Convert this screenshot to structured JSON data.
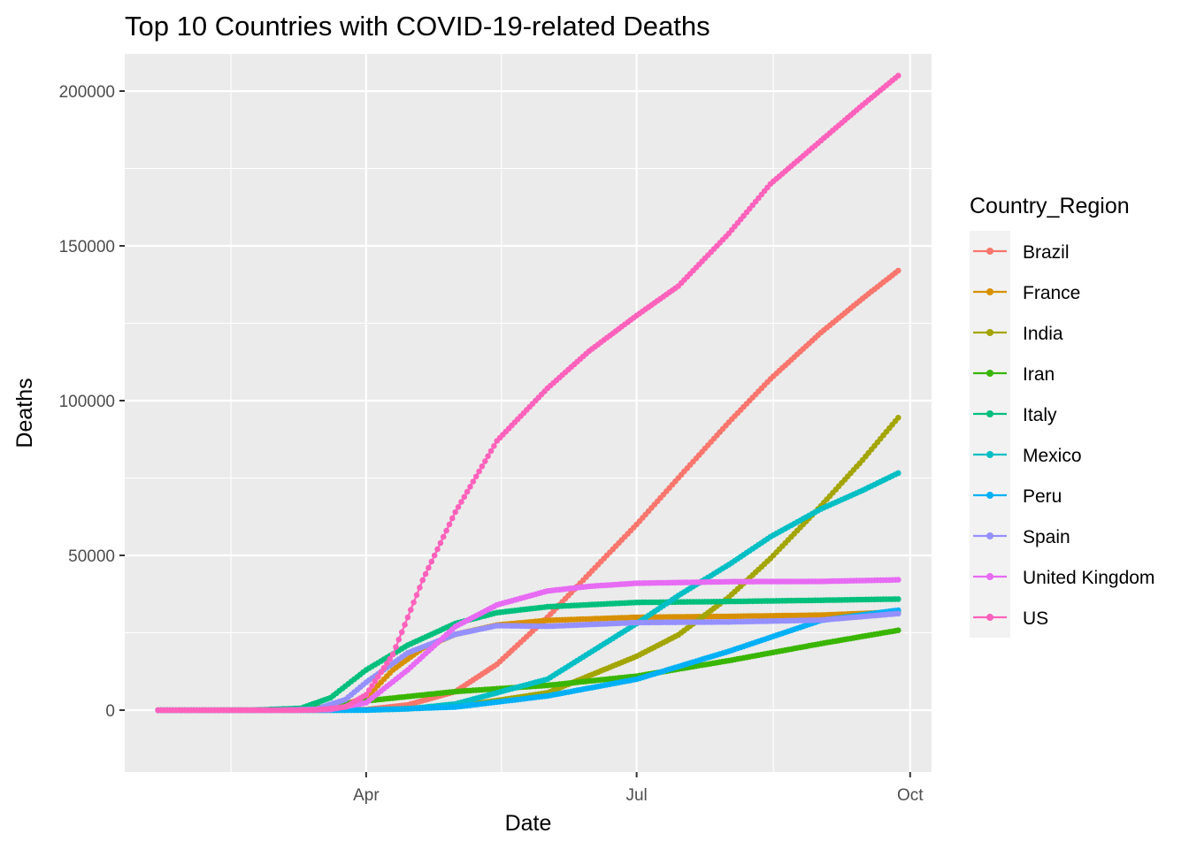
{
  "chart_data": {
    "type": "line",
    "title": "Top 10 Countries with COVID-19-related Deaths",
    "xlabel": "Date",
    "ylabel": "Deaths",
    "x_range": [
      "2020-01-22",
      "2020-09-27"
    ],
    "x_ticks": [
      {
        "date": "2020-04-01",
        "label": "Apr"
      },
      {
        "date": "2020-07-01",
        "label": "Jul"
      },
      {
        "date": "2020-10-01",
        "label": "Oct"
      }
    ],
    "ylim": [
      -20000,
      212000
    ],
    "y_ticks": [
      0,
      50000,
      100000,
      150000,
      200000
    ],
    "grid": true,
    "legend": {
      "title": "Country_Region",
      "position": "right"
    },
    "series": [
      {
        "name": "Brazil",
        "color": "#F8766D",
        "points": [
          [
            "2020-01-22",
            0
          ],
          [
            "2020-03-15",
            0
          ],
          [
            "2020-04-01",
            200
          ],
          [
            "2020-04-15",
            1700
          ],
          [
            "2020-05-01",
            6000
          ],
          [
            "2020-05-15",
            14800
          ],
          [
            "2020-06-01",
            30000
          ],
          [
            "2020-06-15",
            44000
          ],
          [
            "2020-07-01",
            60000
          ],
          [
            "2020-07-15",
            75000
          ],
          [
            "2020-08-01",
            93000
          ],
          [
            "2020-08-15",
            107000
          ],
          [
            "2020-09-01",
            122000
          ],
          [
            "2020-09-15",
            133000
          ],
          [
            "2020-09-27",
            142000
          ]
        ]
      },
      {
        "name": "France",
        "color": "#D89000",
        "points": [
          [
            "2020-01-22",
            0
          ],
          [
            "2020-03-10",
            30
          ],
          [
            "2020-03-20",
            450
          ],
          [
            "2020-04-01",
            4000
          ],
          [
            "2020-04-10",
            13000
          ],
          [
            "2020-04-20",
            20000
          ],
          [
            "2020-05-01",
            24500
          ],
          [
            "2020-05-15",
            27500
          ],
          [
            "2020-06-01",
            29000
          ],
          [
            "2020-07-01",
            30000
          ],
          [
            "2020-08-01",
            30300
          ],
          [
            "2020-09-01",
            30700
          ],
          [
            "2020-09-27",
            31700
          ]
        ]
      },
      {
        "name": "India",
        "color": "#A3A500",
        "points": [
          [
            "2020-01-22",
            0
          ],
          [
            "2020-04-01",
            50
          ],
          [
            "2020-05-01",
            1100
          ],
          [
            "2020-06-01",
            5600
          ],
          [
            "2020-07-01",
            17400
          ],
          [
            "2020-07-15",
            24300
          ],
          [
            "2020-08-01",
            36500
          ],
          [
            "2020-08-15",
            49000
          ],
          [
            "2020-09-01",
            66000
          ],
          [
            "2020-09-15",
            80800
          ],
          [
            "2020-09-27",
            94500
          ]
        ]
      },
      {
        "name": "Iran",
        "color": "#39B600",
        "points": [
          [
            "2020-01-22",
            0
          ],
          [
            "2020-02-20",
            0
          ],
          [
            "2020-03-01",
            50
          ],
          [
            "2020-03-15",
            700
          ],
          [
            "2020-04-01",
            3000
          ],
          [
            "2020-05-01",
            6000
          ],
          [
            "2020-06-01",
            8000
          ],
          [
            "2020-07-01",
            11000
          ],
          [
            "2020-08-01",
            16000
          ],
          [
            "2020-09-01",
            21500
          ],
          [
            "2020-09-27",
            25800
          ]
        ]
      },
      {
        "name": "Italy",
        "color": "#00BF7D",
        "points": [
          [
            "2020-01-22",
            0
          ],
          [
            "2020-02-22",
            0
          ],
          [
            "2020-03-10",
            600
          ],
          [
            "2020-03-20",
            4000
          ],
          [
            "2020-04-01",
            13000
          ],
          [
            "2020-04-15",
            21000
          ],
          [
            "2020-05-01",
            28000
          ],
          [
            "2020-05-15",
            31500
          ],
          [
            "2020-06-01",
            33400
          ],
          [
            "2020-07-01",
            34800
          ],
          [
            "2020-08-01",
            35100
          ],
          [
            "2020-09-01",
            35500
          ],
          [
            "2020-09-27",
            35900
          ]
        ]
      },
      {
        "name": "Mexico",
        "color": "#00BFC4",
        "points": [
          [
            "2020-01-22",
            0
          ],
          [
            "2020-03-20",
            0
          ],
          [
            "2020-04-01",
            30
          ],
          [
            "2020-04-15",
            400
          ],
          [
            "2020-05-01",
            2000
          ],
          [
            "2020-06-01",
            10000
          ],
          [
            "2020-07-01",
            28000
          ],
          [
            "2020-07-15",
            37000
          ],
          [
            "2020-08-01",
            47000
          ],
          [
            "2020-08-15",
            56000
          ],
          [
            "2020-09-01",
            65000
          ],
          [
            "2020-09-15",
            71000
          ],
          [
            "2020-09-27",
            76600
          ]
        ]
      },
      {
        "name": "Peru",
        "color": "#00B0F6",
        "points": [
          [
            "2020-01-22",
            0
          ],
          [
            "2020-03-20",
            0
          ],
          [
            "2020-04-01",
            30
          ],
          [
            "2020-05-01",
            1000
          ],
          [
            "2020-06-01",
            4600
          ],
          [
            "2020-07-01",
            10000
          ],
          [
            "2020-08-01",
            19000
          ],
          [
            "2020-09-01",
            29000
          ],
          [
            "2020-09-27",
            32300
          ]
        ]
      },
      {
        "name": "Spain",
        "color": "#9590FF",
        "points": [
          [
            "2020-01-22",
            0
          ],
          [
            "2020-03-01",
            0
          ],
          [
            "2020-03-15",
            300
          ],
          [
            "2020-03-25",
            3400
          ],
          [
            "2020-04-01",
            9000
          ],
          [
            "2020-04-15",
            18500
          ],
          [
            "2020-05-01",
            24500
          ],
          [
            "2020-05-15",
            27300
          ],
          [
            "2020-06-01",
            27100
          ],
          [
            "2020-07-01",
            28300
          ],
          [
            "2020-08-01",
            28500
          ],
          [
            "2020-09-01",
            29100
          ],
          [
            "2020-09-27",
            31200
          ]
        ]
      },
      {
        "name": "United Kingdom",
        "color": "#E76BF3",
        "points": [
          [
            "2020-01-22",
            0
          ],
          [
            "2020-03-10",
            5
          ],
          [
            "2020-03-20",
            200
          ],
          [
            "2020-04-01",
            2400
          ],
          [
            "2020-04-15",
            13000
          ],
          [
            "2020-05-01",
            27000
          ],
          [
            "2020-05-15",
            34000
          ],
          [
            "2020-06-01",
            38500
          ],
          [
            "2020-06-15",
            40000
          ],
          [
            "2020-07-01",
            41000
          ],
          [
            "2020-08-01",
            41500
          ],
          [
            "2020-09-01",
            41600
          ],
          [
            "2020-09-27",
            42100
          ]
        ]
      },
      {
        "name": "US",
        "color": "#FF62BC",
        "points": [
          [
            "2020-01-22",
            0
          ],
          [
            "2020-03-01",
            1
          ],
          [
            "2020-03-15",
            70
          ],
          [
            "2020-03-25",
            1000
          ],
          [
            "2020-04-01",
            5000
          ],
          [
            "2020-04-10",
            18000
          ],
          [
            "2020-04-20",
            42000
          ],
          [
            "2020-05-01",
            64000
          ],
          [
            "2020-05-15",
            87000
          ],
          [
            "2020-06-01",
            104000
          ],
          [
            "2020-06-15",
            116000
          ],
          [
            "2020-07-01",
            127500
          ],
          [
            "2020-07-15",
            137000
          ],
          [
            "2020-08-01",
            154000
          ],
          [
            "2020-08-15",
            170000
          ],
          [
            "2020-09-01",
            184000
          ],
          [
            "2020-09-15",
            195500
          ],
          [
            "2020-09-27",
            205000
          ]
        ]
      }
    ]
  }
}
